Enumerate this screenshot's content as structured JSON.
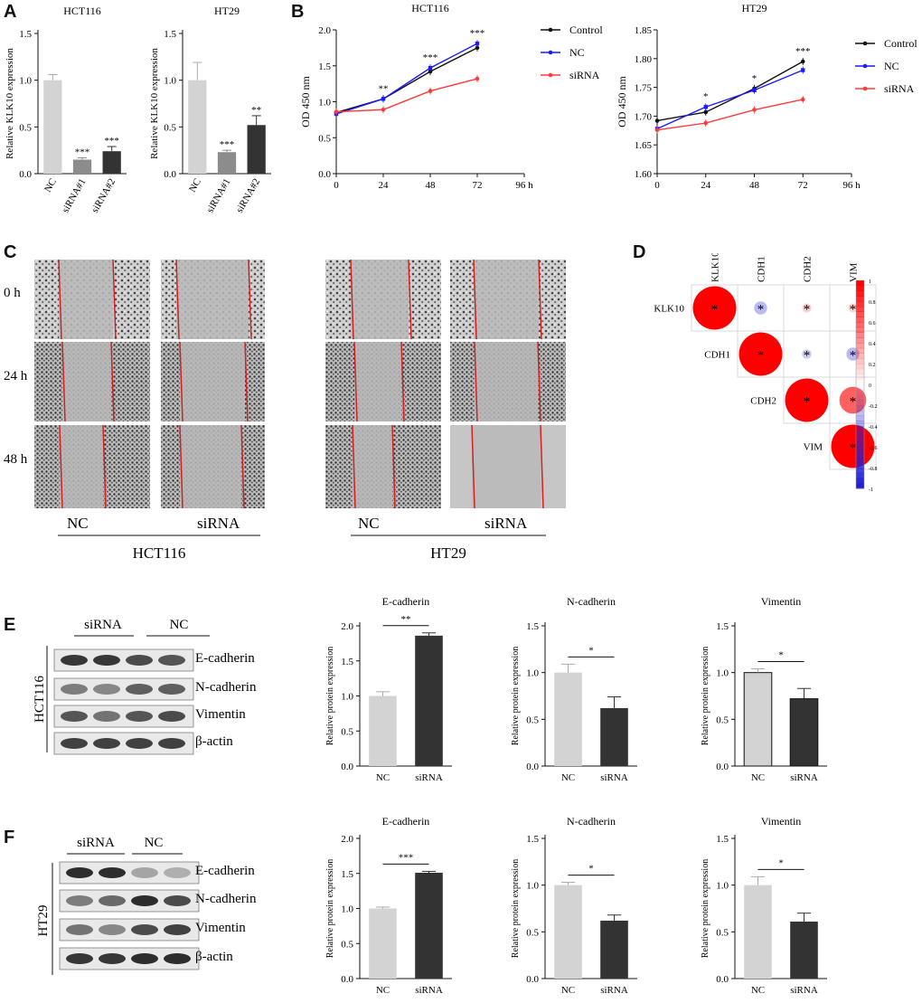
{
  "panel_labels": {
    "A": "A",
    "B": "B",
    "C": "C",
    "D": "D",
    "E": "E",
    "F": "F"
  },
  "colors": {
    "light_bar": "#d3d3d3",
    "mid_bar": "#8c8c8c",
    "dark_bar": "#333333",
    "control": "#111111",
    "nc": "#1a1aff",
    "sirna": "#ff3b3b",
    "wound_line": "#d42020",
    "corr_pos": "#ff0000",
    "corr_neg": "#1f1fd6"
  },
  "chart_data": [
    {
      "id": "A1",
      "type": "bar",
      "title": "HCT116",
      "ylabel": "Relative KLK10 expression",
      "categories": [
        "NC",
        "siRNA#1",
        "siRNA#2"
      ],
      "values": [
        1.0,
        0.15,
        0.24
      ],
      "errors": [
        0.06,
        0.02,
        0.05
      ],
      "significance": [
        "",
        "***",
        "***"
      ],
      "ylim": [
        0,
        1.5
      ],
      "yticks": [
        "0.0",
        "0.5",
        "1.0",
        "1.5"
      ]
    },
    {
      "id": "A2",
      "type": "bar",
      "title": "HT29",
      "ylabel": "Relative KLK10 expression",
      "categories": [
        "NC",
        "siRNA#1",
        "siRNA#2"
      ],
      "values": [
        1.0,
        0.23,
        0.52
      ],
      "errors": [
        0.19,
        0.02,
        0.1
      ],
      "significance": [
        "",
        "***",
        "**"
      ],
      "ylim": [
        0,
        1.5
      ],
      "yticks": [
        "0.0",
        "0.5",
        "1.0",
        "1.5"
      ]
    },
    {
      "id": "B1",
      "type": "line",
      "title": "HCT116",
      "ylabel": "OD 450 nm",
      "x": [
        0,
        24,
        48,
        72
      ],
      "xticks": [
        "0",
        "24",
        "48",
        "72",
        "96 h"
      ],
      "xlim": [
        0,
        96
      ],
      "ylim": [
        0,
        2.0
      ],
      "yticks": [
        "0.0",
        "0.5",
        "1.0",
        "1.5",
        "2.0"
      ],
      "series": [
        {
          "name": "Control",
          "values": [
            0.85,
            1.04,
            1.42,
            1.75
          ]
        },
        {
          "name": "NC",
          "values": [
            0.83,
            1.04,
            1.47,
            1.81
          ]
        },
        {
          "name": "siRNA",
          "values": [
            0.86,
            0.89,
            1.15,
            1.32
          ]
        }
      ],
      "annotations": [
        {
          "x": 24,
          "text": "**"
        },
        {
          "x": 48,
          "text": "***"
        },
        {
          "x": 72,
          "text": "***"
        }
      ]
    },
    {
      "id": "B2",
      "type": "line",
      "title": "HT29",
      "ylabel": "OD 450 nm",
      "x": [
        0,
        24,
        48,
        72
      ],
      "xticks": [
        "0",
        "24",
        "48",
        "72",
        "96 h"
      ],
      "xlim": [
        0,
        96
      ],
      "ylim": [
        1.6,
        1.85
      ],
      "yticks": [
        "1.60",
        "1.65",
        "1.70",
        "1.75",
        "1.80",
        "1.85"
      ],
      "series": [
        {
          "name": "Control",
          "values": [
            1.692,
            1.707,
            1.748,
            1.795
          ]
        },
        {
          "name": "NC",
          "values": [
            1.678,
            1.716,
            1.745,
            1.78
          ]
        },
        {
          "name": "siRNA",
          "values": [
            1.676,
            1.688,
            1.711,
            1.729
          ]
        }
      ],
      "annotations": [
        {
          "x": 24,
          "text": "*"
        },
        {
          "x": 48,
          "text": "*"
        },
        {
          "x": 72,
          "text": "***"
        }
      ]
    },
    {
      "id": "D",
      "type": "heatmap",
      "labels": [
        "KLK10",
        "CDH1",
        "CDH2",
        "VIM"
      ],
      "values": [
        [
          1,
          -0.3,
          0.2,
          0.18
        ],
        [
          null,
          1,
          -0.22,
          -0.3
        ],
        [
          null,
          null,
          1,
          0.62
        ],
        [
          null,
          null,
          null,
          1
        ]
      ],
      "colorbar_ticks": [
        "1",
        "0.8",
        "0.6",
        "0.4",
        "0.2",
        "0",
        "-0.2",
        "-0.4",
        "-0.6",
        "-0.8",
        "-1"
      ]
    },
    {
      "id": "E1",
      "type": "bar",
      "title": "E-cadherin",
      "ylabel": "Relative protein expression",
      "categories": [
        "NC",
        "siRNA"
      ],
      "values": [
        1.0,
        1.86
      ],
      "errors": [
        0.06,
        0.04
      ],
      "significance": "**",
      "ylim": [
        0,
        2.0
      ],
      "yticks": [
        "0.0",
        "0.5",
        "1.0",
        "1.5",
        "2.0"
      ]
    },
    {
      "id": "E2",
      "type": "bar",
      "title": "N-cadherin",
      "ylabel": "Relative protein expression",
      "categories": [
        "NC",
        "siRNA"
      ],
      "values": [
        1.0,
        0.62
      ],
      "errors": [
        0.09,
        0.12
      ],
      "significance": "*",
      "ylim": [
        0,
        1.5
      ],
      "yticks": [
        "0.0",
        "0.5",
        "1.0",
        "1.5"
      ]
    },
    {
      "id": "E3",
      "type": "bar",
      "title": "Vimentin",
      "ylabel": "Relative protein expression",
      "categories": [
        "NC",
        "siRNA"
      ],
      "values": [
        1.0,
        0.72
      ],
      "errors": [
        0.04,
        0.11
      ],
      "significance": "*",
      "ylim": [
        0,
        1.5
      ],
      "yticks": [
        "0.0",
        "0.5",
        "1.0",
        "1.5"
      ]
    },
    {
      "id": "F1",
      "type": "bar",
      "title": "E-cadherin",
      "ylabel": "Relative protein expression",
      "categories": [
        "NC",
        "siRNA"
      ],
      "values": [
        1.0,
        1.51
      ],
      "errors": [
        0.02,
        0.02
      ],
      "significance": "***",
      "ylim": [
        0,
        2.0
      ],
      "yticks": [
        "0.0",
        "0.5",
        "1.0",
        "1.5",
        "2.0"
      ]
    },
    {
      "id": "F2",
      "type": "bar",
      "title": "N-cadherin",
      "ylabel": "Relative protein expression",
      "categories": [
        "NC",
        "siRNA"
      ],
      "values": [
        1.0,
        0.62
      ],
      "errors": [
        0.03,
        0.06
      ],
      "significance": "*",
      "ylim": [
        0,
        1.5
      ],
      "yticks": [
        "0.0",
        "0.5",
        "1.0",
        "1.5"
      ]
    },
    {
      "id": "F3",
      "type": "bar",
      "title": "Vimentin",
      "ylabel": "Relative protein expression",
      "categories": [
        "NC",
        "siRNA"
      ],
      "values": [
        1.0,
        0.61
      ],
      "errors": [
        0.09,
        0.09
      ],
      "significance": "*",
      "ylim": [
        0,
        1.5
      ],
      "yticks": [
        "0.0",
        "0.5",
        "1.0",
        "1.5"
      ]
    }
  ],
  "wound": {
    "time_labels": [
      "0 h",
      "24 h",
      "48 h"
    ],
    "groups_hct116": [
      "NC",
      "siRNA"
    ],
    "groups_ht29": [
      "NC",
      "siRNA"
    ],
    "cell_lines": [
      "HCT116",
      "HT29"
    ]
  },
  "western": {
    "E": {
      "cell_line": "HCT116",
      "groups": [
        "siRNA",
        "NC"
      ],
      "proteins": [
        "E-cadherin",
        "N-cadherin",
        "Vimentin",
        "β-actin"
      ]
    },
    "F": {
      "cell_line": "HT29",
      "groups": [
        "siRNA",
        "NC"
      ],
      "proteins": [
        "E-cadherin",
        "N-cadherin",
        "Vimentin",
        "β-actin"
      ]
    }
  }
}
